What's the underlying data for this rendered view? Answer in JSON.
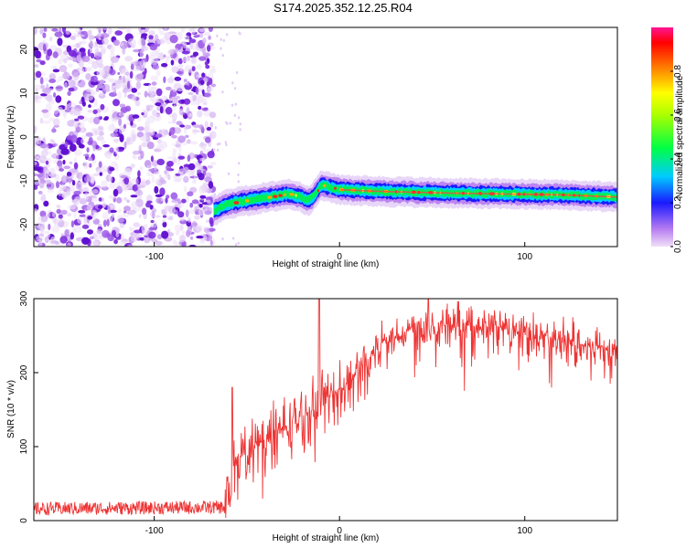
{
  "title": "S174.2025.352.12.25.R04",
  "chart_data": [
    {
      "type": "heatmap",
      "name": "spectrogram",
      "xlabel": "Height of straight line (km)",
      "ylabel": "Frequency (Hz)",
      "xlim": [
        -165,
        150
      ],
      "ylim": [
        -25,
        25
      ],
      "xticks": [
        -100,
        0,
        100
      ],
      "yticks": [
        -20,
        -10,
        0,
        10,
        20
      ],
      "noise_region_x": [
        -165,
        -68
      ],
      "signal_band": {
        "x": [
          -68,
          -62,
          -55,
          -45,
          -35,
          -28,
          -22,
          -17,
          -14,
          -10,
          -5,
          0,
          15,
          30,
          60,
          90,
          120,
          150
        ],
        "freq": [
          -17,
          -15.5,
          -14.8,
          -14.2,
          -13.5,
          -13,
          -13.5,
          -14.5,
          -13.5,
          -11,
          -11.5,
          -12,
          -12.3,
          -12.5,
          -12.8,
          -13,
          -13.2,
          -13.7
        ]
      },
      "colorbar": {
        "label": "Normalized spectral amplitude",
        "range": [
          0.0,
          1.0
        ],
        "ticks": [
          0.0,
          0.2,
          0.4,
          0.6,
          0.8
        ]
      }
    },
    {
      "type": "line",
      "name": "snr",
      "xlabel": "Height of straight line (km)",
      "ylabel": "SNR (10 * v/v)",
      "xlim": [
        -165,
        150
      ],
      "ylim": [
        0,
        300
      ],
      "xticks": [
        -100,
        0,
        100
      ],
      "yticks": [
        0,
        100,
        200,
        300
      ],
      "color": "#ee3333",
      "envelope": {
        "x": [
          -165,
          -62,
          -58,
          -50,
          -40,
          -30,
          -20,
          -12,
          -8,
          -3,
          5,
          15,
          25,
          40,
          60,
          80,
          100,
          120,
          150
        ],
        "y": [
          16,
          18,
          70,
          95,
          110,
          125,
          140,
          155,
          165,
          170,
          185,
          220,
          245,
          260,
          265,
          262,
          255,
          245,
          230
        ]
      },
      "spikes": [
        {
          "x": -58,
          "y": 180
        },
        {
          "x": -11,
          "y": 300
        },
        {
          "x": 48,
          "y": 300
        }
      ]
    }
  ]
}
